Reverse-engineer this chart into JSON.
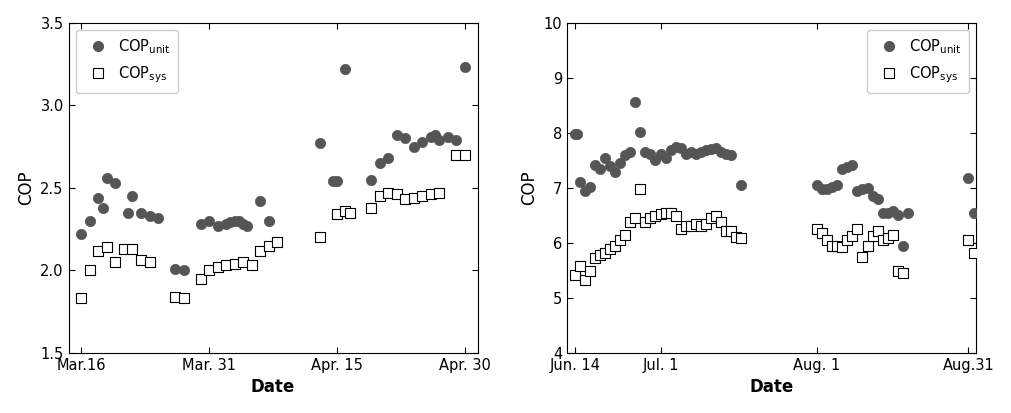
{
  "plot1": {
    "ylim": [
      1.5,
      3.5
    ],
    "yticks": [
      1.5,
      2.0,
      2.5,
      3.0,
      3.5
    ],
    "xtick_labels": [
      "Mar.16",
      "Mar. 31",
      "Apr. 15",
      "Apr. 30"
    ],
    "xtick_positions": [
      0,
      15,
      30,
      45
    ],
    "xlabel": "Date",
    "ylabel": "COP",
    "legend_loc": "upper left",
    "cop_unit": [
      [
        0,
        2.22
      ],
      [
        1,
        2.3
      ],
      [
        2,
        2.44
      ],
      [
        2.5,
        2.38
      ],
      [
        3,
        2.56
      ],
      [
        4,
        2.53
      ],
      [
        5.5,
        2.35
      ],
      [
        6,
        2.45
      ],
      [
        7,
        2.35
      ],
      [
        8,
        2.33
      ],
      [
        9,
        2.32
      ],
      [
        11,
        2.01
      ],
      [
        12,
        2.0
      ],
      [
        14,
        2.28
      ],
      [
        15,
        2.3
      ],
      [
        16,
        2.27
      ],
      [
        17,
        2.28
      ],
      [
        17.5,
        2.29
      ],
      [
        18,
        2.3
      ],
      [
        18.5,
        2.3
      ],
      [
        19,
        2.28
      ],
      [
        19.5,
        2.27
      ],
      [
        21,
        2.42
      ],
      [
        22,
        2.3
      ],
      [
        28,
        2.77
      ],
      [
        29.5,
        2.54
      ],
      [
        30,
        2.54
      ],
      [
        31,
        3.22
      ],
      [
        34,
        2.55
      ],
      [
        35,
        2.65
      ],
      [
        36,
        2.68
      ],
      [
        37,
        2.82
      ],
      [
        38,
        2.8
      ],
      [
        39,
        2.75
      ],
      [
        40,
        2.78
      ],
      [
        41,
        2.81
      ],
      [
        41.5,
        2.82
      ],
      [
        42,
        2.79
      ],
      [
        43,
        2.81
      ],
      [
        44,
        2.79
      ],
      [
        45,
        3.23
      ]
    ],
    "cop_sys": [
      [
        0,
        1.83
      ],
      [
        1,
        2.0
      ],
      [
        2,
        2.12
      ],
      [
        3,
        2.14
      ],
      [
        4,
        2.05
      ],
      [
        5,
        2.13
      ],
      [
        6,
        2.13
      ],
      [
        7,
        2.06
      ],
      [
        8,
        2.05
      ],
      [
        11,
        1.84
      ],
      [
        12,
        1.83
      ],
      [
        14,
        1.95
      ],
      [
        15,
        2.0
      ],
      [
        16,
        2.02
      ],
      [
        17,
        2.03
      ],
      [
        18,
        2.04
      ],
      [
        19,
        2.05
      ],
      [
        20,
        2.03
      ],
      [
        21,
        2.12
      ],
      [
        22,
        2.15
      ],
      [
        23,
        2.17
      ],
      [
        28,
        2.2
      ],
      [
        30,
        2.34
      ],
      [
        31,
        2.36
      ],
      [
        31.5,
        2.35
      ],
      [
        34,
        2.38
      ],
      [
        35,
        2.45
      ],
      [
        36,
        2.47
      ],
      [
        37,
        2.46
      ],
      [
        38,
        2.43
      ],
      [
        39,
        2.44
      ],
      [
        40,
        2.45
      ],
      [
        41,
        2.46
      ],
      [
        42,
        2.47
      ],
      [
        44,
        2.7
      ],
      [
        45,
        2.7
      ]
    ]
  },
  "plot2": {
    "ylim": [
      4,
      10
    ],
    "yticks": [
      4,
      5,
      6,
      7,
      8,
      9,
      10
    ],
    "xtick_labels": [
      "Jun. 14",
      "Jul. 1",
      "Aug. 1",
      "Aug.31"
    ],
    "xtick_positions": [
      0,
      17,
      48,
      78
    ],
    "xlabel": "Date",
    "ylabel": "COP",
    "legend_loc": "upper right",
    "cop_unit": [
      [
        0,
        7.98
      ],
      [
        0.5,
        7.97
      ],
      [
        1,
        7.1
      ],
      [
        2,
        6.95
      ],
      [
        3,
        7.02
      ],
      [
        4,
        7.42
      ],
      [
        5,
        7.35
      ],
      [
        6,
        7.55
      ],
      [
        7,
        7.4
      ],
      [
        8,
        7.28
      ],
      [
        9,
        7.45
      ],
      [
        10,
        7.6
      ],
      [
        11,
        7.65
      ],
      [
        12,
        8.56
      ],
      [
        13,
        8.02
      ],
      [
        14,
        7.65
      ],
      [
        15,
        7.62
      ],
      [
        16,
        7.5
      ],
      [
        17,
        7.62
      ],
      [
        18,
        7.55
      ],
      [
        19,
        7.68
      ],
      [
        20,
        7.75
      ],
      [
        21,
        7.72
      ],
      [
        22,
        7.62
      ],
      [
        23,
        7.65
      ],
      [
        24,
        7.62
      ],
      [
        25,
        7.65
      ],
      [
        26,
        7.68
      ],
      [
        27,
        7.7
      ],
      [
        28,
        7.72
      ],
      [
        29,
        7.65
      ],
      [
        30,
        7.62
      ],
      [
        31,
        7.6
      ],
      [
        33,
        7.05
      ],
      [
        48,
        7.05
      ],
      [
        49,
        6.98
      ],
      [
        50,
        6.97
      ],
      [
        51,
        7.02
      ],
      [
        52,
        7.05
      ],
      [
        53,
        7.35
      ],
      [
        54,
        7.38
      ],
      [
        55,
        7.42
      ],
      [
        56,
        6.95
      ],
      [
        57,
        6.98
      ],
      [
        58,
        7.0
      ],
      [
        59,
        6.85
      ],
      [
        60,
        6.8
      ],
      [
        61,
        6.55
      ],
      [
        62,
        6.55
      ],
      [
        63,
        6.58
      ],
      [
        64,
        6.5
      ],
      [
        65,
        5.95
      ],
      [
        66,
        6.55
      ],
      [
        78,
        7.18
      ],
      [
        79,
        6.55
      ]
    ],
    "cop_sys": [
      [
        0,
        5.42
      ],
      [
        1,
        5.58
      ],
      [
        2,
        5.32
      ],
      [
        3,
        5.48
      ],
      [
        4,
        5.72
      ],
      [
        5,
        5.78
      ],
      [
        6,
        5.82
      ],
      [
        7,
        5.88
      ],
      [
        8,
        5.95
      ],
      [
        9,
        6.05
      ],
      [
        10,
        6.15
      ],
      [
        11,
        6.38
      ],
      [
        12,
        6.45
      ],
      [
        13,
        6.98
      ],
      [
        14,
        6.38
      ],
      [
        15,
        6.45
      ],
      [
        16,
        6.48
      ],
      [
        17,
        6.52
      ],
      [
        18,
        6.55
      ],
      [
        19,
        6.55
      ],
      [
        20,
        6.48
      ],
      [
        21,
        6.25
      ],
      [
        22,
        6.3
      ],
      [
        23,
        6.3
      ],
      [
        24,
        6.35
      ],
      [
        25,
        6.3
      ],
      [
        26,
        6.35
      ],
      [
        27,
        6.45
      ],
      [
        28,
        6.48
      ],
      [
        29,
        6.38
      ],
      [
        30,
        6.22
      ],
      [
        31,
        6.22
      ],
      [
        32,
        6.1
      ],
      [
        33,
        6.08
      ],
      [
        48,
        6.25
      ],
      [
        49,
        6.18
      ],
      [
        50,
        6.05
      ],
      [
        51,
        5.95
      ],
      [
        52,
        5.95
      ],
      [
        53,
        5.92
      ],
      [
        54,
        6.05
      ],
      [
        55,
        6.12
      ],
      [
        56,
        6.25
      ],
      [
        57,
        5.75
      ],
      [
        58,
        5.95
      ],
      [
        59,
        6.12
      ],
      [
        60,
        6.22
      ],
      [
        61,
        6.05
      ],
      [
        62,
        6.08
      ],
      [
        63,
        6.15
      ],
      [
        64,
        5.48
      ],
      [
        65,
        5.45
      ],
      [
        78,
        6.05
      ],
      [
        79,
        5.82
      ]
    ]
  },
  "marker_color": "#555555",
  "marker_size": 55,
  "marker_size_sq": 45,
  "legend_fontsize": 10.5,
  "tick_fontsize": 10.5,
  "label_fontsize": 12,
  "ylabel_fontsize": 12,
  "figsize": [
    10.12,
    4.13
  ],
  "dpi": 100
}
